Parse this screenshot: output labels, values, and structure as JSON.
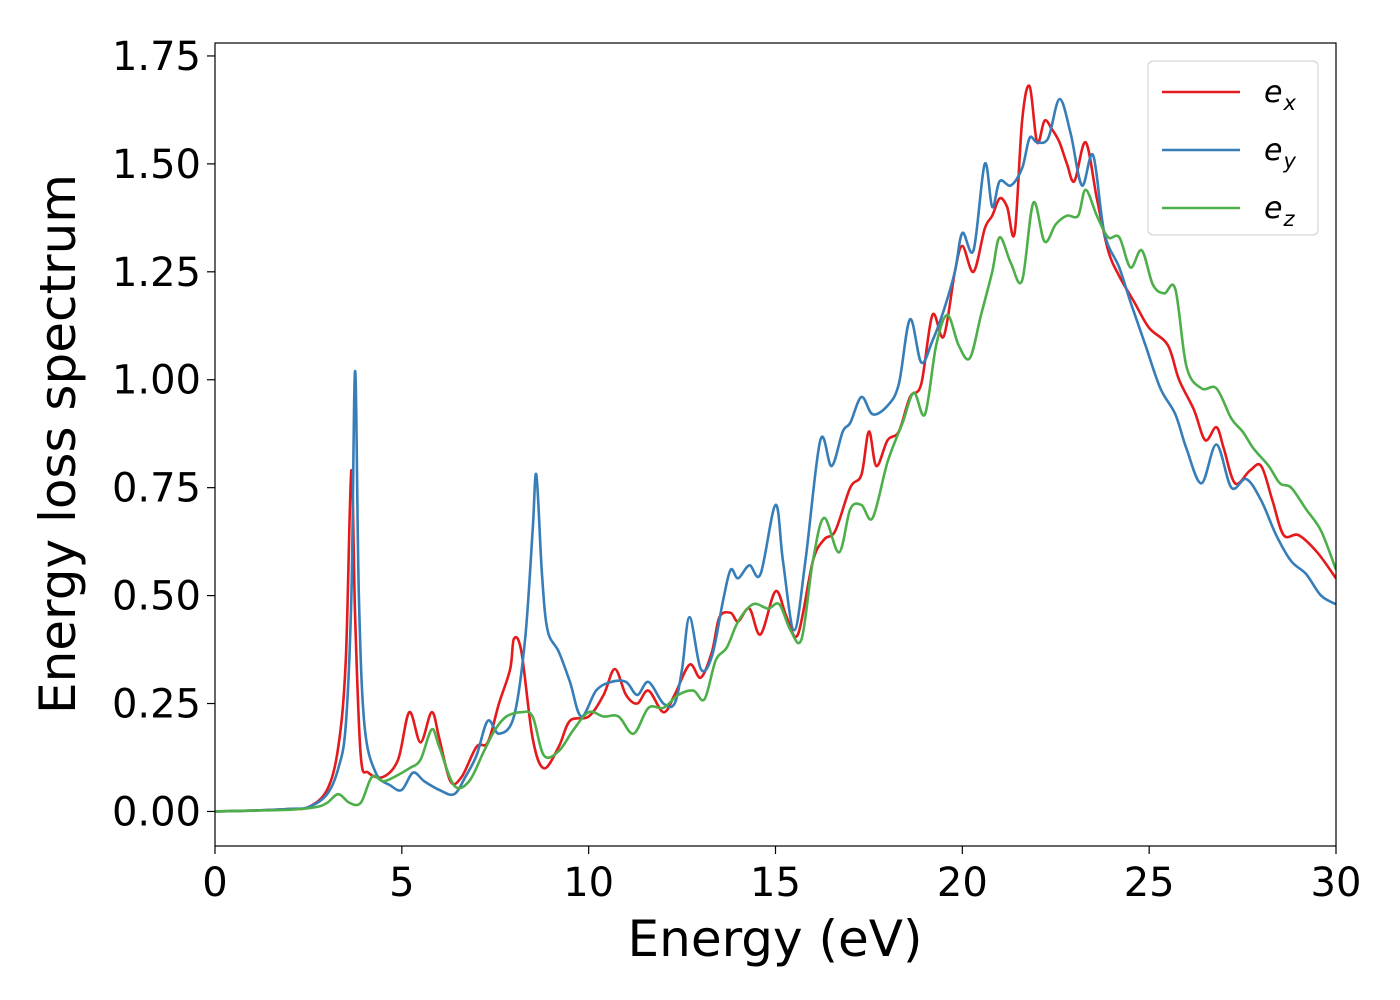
{
  "chart_data": {
    "type": "line",
    "title": "",
    "xlabel": "Energy (eV)",
    "ylabel": "Energy loss spectrum",
    "xlim": [
      0,
      30
    ],
    "ylim": [
      -0.08,
      1.78
    ],
    "xticks": [
      "0",
      "5",
      "10",
      "15",
      "20",
      "25",
      "30"
    ],
    "yticks": [
      "0.00",
      "0.25",
      "0.50",
      "0.75",
      "1.00",
      "1.25",
      "1.50",
      "1.75"
    ],
    "grid": false,
    "legend_position": "top-right",
    "series": [
      {
        "name": "e_x",
        "legend_base": "e",
        "legend_sub": "x",
        "color": "#e41a1c",
        "points": [
          [
            0,
            0.0
          ],
          [
            1,
            0.002
          ],
          [
            2,
            0.006
          ],
          [
            2.5,
            0.01
          ],
          [
            3.0,
            0.05
          ],
          [
            3.3,
            0.15
          ],
          [
            3.5,
            0.35
          ],
          [
            3.65,
            0.79
          ],
          [
            3.75,
            0.45
          ],
          [
            3.9,
            0.13
          ],
          [
            4.1,
            0.09
          ],
          [
            4.5,
            0.08
          ],
          [
            4.9,
            0.12
          ],
          [
            5.2,
            0.23
          ],
          [
            5.5,
            0.16
          ],
          [
            5.8,
            0.23
          ],
          [
            6.0,
            0.17
          ],
          [
            6.3,
            0.07
          ],
          [
            6.6,
            0.08
          ],
          [
            7.0,
            0.15
          ],
          [
            7.3,
            0.16
          ],
          [
            7.6,
            0.25
          ],
          [
            7.9,
            0.33
          ],
          [
            8.0,
            0.4
          ],
          [
            8.2,
            0.37
          ],
          [
            8.5,
            0.17
          ],
          [
            8.8,
            0.1
          ],
          [
            9.2,
            0.15
          ],
          [
            9.5,
            0.21
          ],
          [
            10.0,
            0.22
          ],
          [
            10.4,
            0.27
          ],
          [
            10.7,
            0.33
          ],
          [
            11.0,
            0.27
          ],
          [
            11.3,
            0.25
          ],
          [
            11.6,
            0.28
          ],
          [
            12.0,
            0.23
          ],
          [
            12.3,
            0.27
          ],
          [
            12.7,
            0.34
          ],
          [
            13.0,
            0.31
          ],
          [
            13.3,
            0.37
          ],
          [
            13.5,
            0.45
          ],
          [
            13.8,
            0.46
          ],
          [
            14.0,
            0.44
          ],
          [
            14.3,
            0.47
          ],
          [
            14.6,
            0.41
          ],
          [
            15.0,
            0.51
          ],
          [
            15.3,
            0.45
          ],
          [
            15.6,
            0.41
          ],
          [
            16.0,
            0.58
          ],
          [
            16.3,
            0.63
          ],
          [
            16.6,
            0.65
          ],
          [
            17.0,
            0.75
          ],
          [
            17.3,
            0.78
          ],
          [
            17.5,
            0.88
          ],
          [
            17.7,
            0.8
          ],
          [
            18.0,
            0.86
          ],
          [
            18.3,
            0.88
          ],
          [
            18.6,
            0.96
          ],
          [
            18.9,
            0.99
          ],
          [
            19.2,
            1.15
          ],
          [
            19.5,
            1.1
          ],
          [
            19.8,
            1.25
          ],
          [
            20.0,
            1.31
          ],
          [
            20.3,
            1.25
          ],
          [
            20.6,
            1.35
          ],
          [
            20.8,
            1.38
          ],
          [
            21.0,
            1.42
          ],
          [
            21.2,
            1.4
          ],
          [
            21.4,
            1.34
          ],
          [
            21.6,
            1.6
          ],
          [
            21.8,
            1.68
          ],
          [
            22.0,
            1.55
          ],
          [
            22.2,
            1.6
          ],
          [
            22.4,
            1.58
          ],
          [
            22.6,
            1.55
          ],
          [
            22.8,
            1.5
          ],
          [
            23.0,
            1.46
          ],
          [
            23.3,
            1.55
          ],
          [
            23.6,
            1.42
          ],
          [
            23.9,
            1.3
          ],
          [
            24.2,
            1.24
          ],
          [
            24.6,
            1.18
          ],
          [
            25.0,
            1.12
          ],
          [
            25.5,
            1.08
          ],
          [
            25.8,
            1.0
          ],
          [
            26.2,
            0.93
          ],
          [
            26.5,
            0.86
          ],
          [
            26.8,
            0.89
          ],
          [
            27.0,
            0.84
          ],
          [
            27.3,
            0.76
          ],
          [
            27.7,
            0.79
          ],
          [
            28.0,
            0.8
          ],
          [
            28.3,
            0.72
          ],
          [
            28.6,
            0.64
          ],
          [
            29.0,
            0.64
          ],
          [
            29.5,
            0.6
          ],
          [
            30.0,
            0.54
          ]
        ]
      },
      {
        "name": "e_y",
        "legend_base": "e",
        "legend_sub": "y",
        "color": "#377eb8",
        "points": [
          [
            0,
            0.0
          ],
          [
            1,
            0.002
          ],
          [
            2,
            0.006
          ],
          [
            2.5,
            0.01
          ],
          [
            3.0,
            0.04
          ],
          [
            3.3,
            0.1
          ],
          [
            3.5,
            0.2
          ],
          [
            3.65,
            0.5
          ],
          [
            3.75,
            1.02
          ],
          [
            3.85,
            0.5
          ],
          [
            4.0,
            0.2
          ],
          [
            4.3,
            0.09
          ],
          [
            4.7,
            0.06
          ],
          [
            5.0,
            0.05
          ],
          [
            5.3,
            0.09
          ],
          [
            5.6,
            0.07
          ],
          [
            6.0,
            0.05
          ],
          [
            6.4,
            0.04
          ],
          [
            6.7,
            0.08
          ],
          [
            7.0,
            0.13
          ],
          [
            7.3,
            0.21
          ],
          [
            7.6,
            0.18
          ],
          [
            8.0,
            0.22
          ],
          [
            8.3,
            0.4
          ],
          [
            8.5,
            0.65
          ],
          [
            8.6,
            0.78
          ],
          [
            8.75,
            0.55
          ],
          [
            8.9,
            0.42
          ],
          [
            9.2,
            0.37
          ],
          [
            9.5,
            0.3
          ],
          [
            9.8,
            0.22
          ],
          [
            10.2,
            0.28
          ],
          [
            10.6,
            0.3
          ],
          [
            11.0,
            0.3
          ],
          [
            11.3,
            0.27
          ],
          [
            11.6,
            0.3
          ],
          [
            12.0,
            0.25
          ],
          [
            12.3,
            0.25
          ],
          [
            12.5,
            0.33
          ],
          [
            12.7,
            0.45
          ],
          [
            13.0,
            0.33
          ],
          [
            13.3,
            0.36
          ],
          [
            13.6,
            0.49
          ],
          [
            13.8,
            0.56
          ],
          [
            14.0,
            0.54
          ],
          [
            14.3,
            0.57
          ],
          [
            14.6,
            0.55
          ],
          [
            15.0,
            0.71
          ],
          [
            15.2,
            0.58
          ],
          [
            15.5,
            0.42
          ],
          [
            15.8,
            0.58
          ],
          [
            16.2,
            0.86
          ],
          [
            16.5,
            0.8
          ],
          [
            16.8,
            0.88
          ],
          [
            17.0,
            0.9
          ],
          [
            17.3,
            0.96
          ],
          [
            17.6,
            0.92
          ],
          [
            18.0,
            0.94
          ],
          [
            18.3,
            0.99
          ],
          [
            18.6,
            1.14
          ],
          [
            18.9,
            1.04
          ],
          [
            19.2,
            1.09
          ],
          [
            19.5,
            1.16
          ],
          [
            19.8,
            1.25
          ],
          [
            20.0,
            1.34
          ],
          [
            20.3,
            1.3
          ],
          [
            20.6,
            1.5
          ],
          [
            20.8,
            1.4
          ],
          [
            21.0,
            1.46
          ],
          [
            21.3,
            1.45
          ],
          [
            21.6,
            1.49
          ],
          [
            21.8,
            1.56
          ],
          [
            22.0,
            1.55
          ],
          [
            22.3,
            1.56
          ],
          [
            22.6,
            1.65
          ],
          [
            22.9,
            1.57
          ],
          [
            23.2,
            1.45
          ],
          [
            23.5,
            1.52
          ],
          [
            23.8,
            1.34
          ],
          [
            24.2,
            1.26
          ],
          [
            24.5,
            1.18
          ],
          [
            24.9,
            1.08
          ],
          [
            25.3,
            0.98
          ],
          [
            25.7,
            0.92
          ],
          [
            26.0,
            0.84
          ],
          [
            26.4,
            0.76
          ],
          [
            26.8,
            0.85
          ],
          [
            27.2,
            0.75
          ],
          [
            27.6,
            0.77
          ],
          [
            28.0,
            0.72
          ],
          [
            28.4,
            0.64
          ],
          [
            28.8,
            0.58
          ],
          [
            29.2,
            0.55
          ],
          [
            29.6,
            0.5
          ],
          [
            30.0,
            0.48
          ]
        ]
      },
      {
        "name": "e_z",
        "legend_base": "e",
        "legend_sub": "z",
        "color": "#4daf4a",
        "points": [
          [
            0,
            0.0
          ],
          [
            1,
            0.002
          ],
          [
            2,
            0.004
          ],
          [
            2.7,
            0.01
          ],
          [
            3.0,
            0.02
          ],
          [
            3.3,
            0.04
          ],
          [
            3.6,
            0.02
          ],
          [
            3.9,
            0.02
          ],
          [
            4.2,
            0.08
          ],
          [
            4.5,
            0.07
          ],
          [
            4.8,
            0.08
          ],
          [
            5.2,
            0.1
          ],
          [
            5.5,
            0.12
          ],
          [
            5.8,
            0.19
          ],
          [
            6.0,
            0.15
          ],
          [
            6.4,
            0.06
          ],
          [
            6.8,
            0.07
          ],
          [
            7.2,
            0.14
          ],
          [
            7.5,
            0.19
          ],
          [
            7.8,
            0.22
          ],
          [
            8.2,
            0.23
          ],
          [
            8.5,
            0.22
          ],
          [
            8.8,
            0.13
          ],
          [
            9.2,
            0.14
          ],
          [
            9.6,
            0.19
          ],
          [
            10.0,
            0.23
          ],
          [
            10.4,
            0.22
          ],
          [
            10.8,
            0.22
          ],
          [
            11.2,
            0.18
          ],
          [
            11.6,
            0.24
          ],
          [
            12.0,
            0.24
          ],
          [
            12.4,
            0.27
          ],
          [
            12.8,
            0.28
          ],
          [
            13.1,
            0.26
          ],
          [
            13.4,
            0.35
          ],
          [
            13.7,
            0.38
          ],
          [
            14.0,
            0.44
          ],
          [
            14.4,
            0.48
          ],
          [
            14.8,
            0.47
          ],
          [
            15.1,
            0.48
          ],
          [
            15.4,
            0.42
          ],
          [
            15.7,
            0.4
          ],
          [
            16.0,
            0.58
          ],
          [
            16.3,
            0.68
          ],
          [
            16.7,
            0.6
          ],
          [
            17.0,
            0.7
          ],
          [
            17.3,
            0.71
          ],
          [
            17.6,
            0.68
          ],
          [
            18.0,
            0.81
          ],
          [
            18.4,
            0.9
          ],
          [
            18.7,
            0.97
          ],
          [
            19.0,
            0.92
          ],
          [
            19.3,
            1.08
          ],
          [
            19.6,
            1.15
          ],
          [
            19.9,
            1.08
          ],
          [
            20.2,
            1.05
          ],
          [
            20.5,
            1.15
          ],
          [
            20.8,
            1.25
          ],
          [
            21.0,
            1.33
          ],
          [
            21.3,
            1.27
          ],
          [
            21.6,
            1.23
          ],
          [
            21.9,
            1.41
          ],
          [
            22.2,
            1.32
          ],
          [
            22.5,
            1.36
          ],
          [
            22.8,
            1.38
          ],
          [
            23.1,
            1.38
          ],
          [
            23.3,
            1.44
          ],
          [
            23.6,
            1.38
          ],
          [
            23.9,
            1.33
          ],
          [
            24.2,
            1.33
          ],
          [
            24.5,
            1.26
          ],
          [
            24.8,
            1.3
          ],
          [
            25.1,
            1.22
          ],
          [
            25.4,
            1.2
          ],
          [
            25.7,
            1.21
          ],
          [
            26.0,
            1.03
          ],
          [
            26.4,
            0.98
          ],
          [
            26.8,
            0.98
          ],
          [
            27.2,
            0.91
          ],
          [
            27.5,
            0.88
          ],
          [
            27.8,
            0.84
          ],
          [
            28.2,
            0.8
          ],
          [
            28.5,
            0.76
          ],
          [
            28.8,
            0.75
          ],
          [
            29.2,
            0.7
          ],
          [
            29.6,
            0.65
          ],
          [
            30.0,
            0.56
          ]
        ]
      }
    ]
  }
}
